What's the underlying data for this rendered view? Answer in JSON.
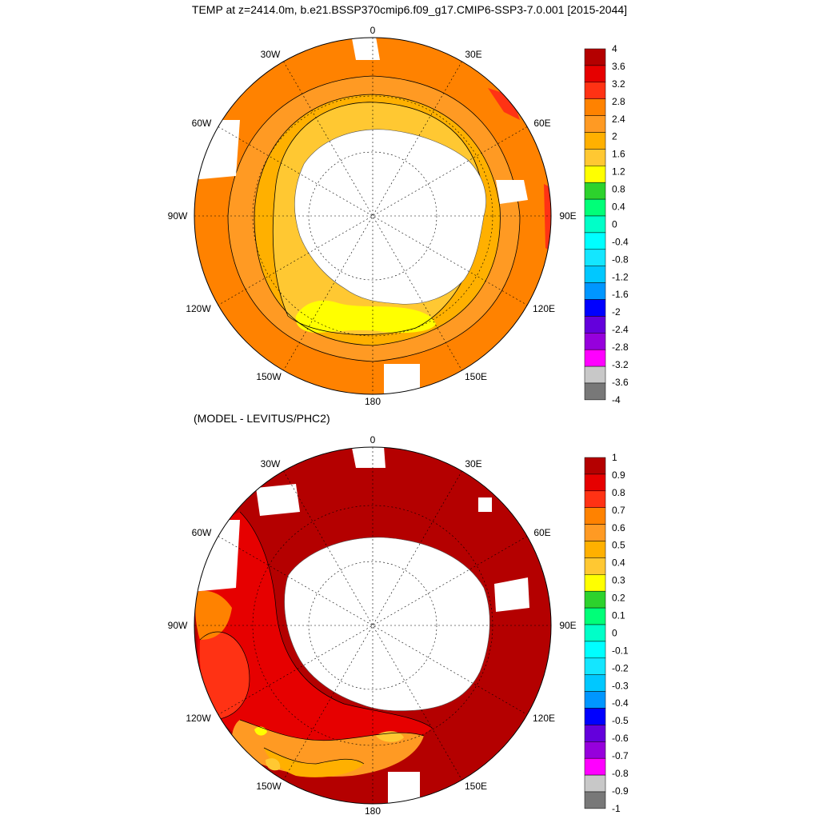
{
  "title": "TEMP at z=2414.0m, b.e21.BSSP370cmip6.f09_g17.CMIP6-SSP3-7.0.001 [2015-2044]",
  "subtitle": "(MODEL - LEVITUS/PHC2)",
  "top_map": {
    "lon_labels": {
      "n": "0",
      "ne30": "30E",
      "ne60": "60E",
      "e": "90E",
      "se120": "120E",
      "se150": "150E",
      "s": "180",
      "sw150": "150W",
      "sw120": "120W",
      "w": "90W",
      "nw60": "60W",
      "nw30": "30W"
    }
  },
  "bottom_map": {
    "lon_labels": {
      "n": "0",
      "ne30": "30E",
      "ne60": "60E",
      "e": "90E",
      "se120": "120E",
      "se150": "150E",
      "s": "180",
      "sw150": "150W",
      "sw120": "120W",
      "w": "90W",
      "nw60": "60W",
      "nw30": "30W"
    }
  },
  "colorbar_top": {
    "labels": [
      "4",
      "3.6",
      "3.2",
      "2.8",
      "2.4",
      "2",
      "1.6",
      "1.2",
      "0.8",
      "0.4",
      "0",
      "-0.4",
      "-0.8",
      "-1.2",
      "-1.6",
      "-2",
      "-2.4",
      "-2.8",
      "-3.2",
      "-3.6",
      "-4"
    ],
    "colors": [
      "#b40000",
      "#e60000",
      "#ff3214",
      "#ff8200",
      "#ff9a23",
      "#ffb000",
      "#ffc832",
      "#ffff00",
      "#2dd22d",
      "#00ff78",
      "#00ffc8",
      "#00ffff",
      "#14e6ff",
      "#00c8ff",
      "#0096ff",
      "#0000ff",
      "#6400dc",
      "#9600dc",
      "#ff00ff",
      "#c8c8c8",
      "#787878"
    ]
  },
  "colorbar_bottom": {
    "labels": [
      "1",
      "0.9",
      "0.8",
      "0.7",
      "0.6",
      "0.5",
      "0.4",
      "0.3",
      "0.2",
      "0.1",
      "0",
      "-0.1",
      "-0.2",
      "-0.3",
      "-0.4",
      "-0.5",
      "-0.6",
      "-0.7",
      "-0.8",
      "-0.9",
      "-1"
    ],
    "colors": [
      "#b40000",
      "#e60000",
      "#ff3214",
      "#ff8200",
      "#ff9a23",
      "#ffb000",
      "#ffc832",
      "#ffff00",
      "#2dd22d",
      "#00ff78",
      "#00ffc8",
      "#00ffff",
      "#14e6ff",
      "#00c8ff",
      "#0096ff",
      "#0000ff",
      "#6400dc",
      "#9600dc",
      "#ff00ff",
      "#c8c8c8",
      "#787878"
    ]
  }
}
